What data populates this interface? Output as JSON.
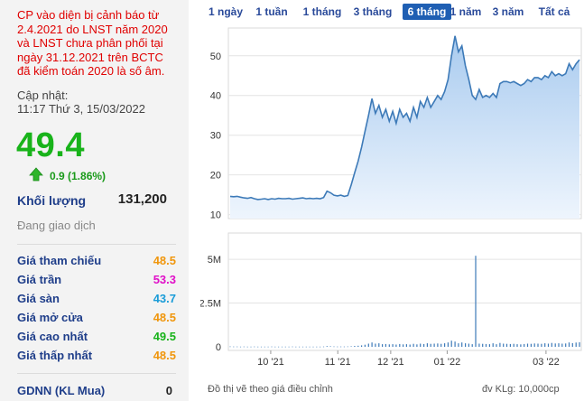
{
  "warning_lines": [
    "CP vào diện bị cảnh báo từ",
    "2.4.2021 do LNST năm 2020",
    "và LNST chưa phân phối tại",
    "ngày 31.12.2021 trên BCTC",
    "đã kiểm toán 2020 là số âm."
  ],
  "updated_label": "Cập nhật:",
  "updated_time": "11:17 Thứ 3, 15/03/2022",
  "price": "49.4",
  "change": "0.9 (1.86%)",
  "volume_label": "Khối lượng",
  "volume_value": "131,200",
  "trading_status": "Đang giao dịch",
  "stats": [
    {
      "label": "Giá tham chiếu",
      "value": "48.5",
      "color": "#f0960c"
    },
    {
      "label": "Giá trần",
      "value": "53.3",
      "color": "#e010c8"
    },
    {
      "label": "Giá sàn",
      "value": "43.7",
      "color": "#1a9cd8"
    },
    {
      "label": "Giá mở cửa",
      "value": "48.5",
      "color": "#f0960c"
    },
    {
      "label": "Giá cao nhất",
      "value": "49.5",
      "color": "#18b31a"
    },
    {
      "label": "Giá thấp nhất",
      "value": "48.5",
      "color": "#f0960c"
    }
  ],
  "gdnn_label": "GDNN (KL Mua)",
  "gdnn_value": "0",
  "tabs": [
    "1 ngày",
    "1 tuần",
    "1 tháng",
    "3 tháng",
    "6 tháng",
    "1 năm",
    "3 năm",
    "Tất cả"
  ],
  "active_tab": "6 tháng",
  "footer_left": "Đồ thị vẽ theo giá điều chỉnh",
  "footer_right": "đv KLg: 10,000cp",
  "colors": {
    "up": "#18b31a",
    "line": "#3d7ab8",
    "area_top": "#a9cbef",
    "area_bottom": "#eef5fd",
    "tab_active": "#1f5fb3"
  },
  "chart_data": [
    {
      "type": "area",
      "title": "",
      "xlabel": "",
      "ylabel": "",
      "x_ticks": [
        "10 '21",
        "11 '21",
        "12 '21",
        "01 '22",
        "03 '22"
      ],
      "y_ticks": [
        10,
        20,
        30,
        40,
        50
      ],
      "ylim": [
        9,
        57
      ],
      "grid": true,
      "series": [
        {
          "values": [
            14.6,
            14.5,
            14.6,
            14.4,
            14.2,
            14.1,
            14.3,
            14.0,
            13.8,
            13.9,
            14.0,
            13.8,
            14.0,
            13.9,
            14.1,
            14.0,
            14.0,
            14.1,
            13.9,
            14.0,
            14.1,
            14.2,
            14.0,
            14.1,
            14.0,
            14.1,
            14.0,
            14.3,
            15.9,
            15.5,
            14.9,
            14.7,
            14.9,
            14.6,
            14.8,
            17.5,
            20.5,
            23.5,
            27.0,
            31.0,
            35.0,
            39.2,
            35.5,
            37.5,
            34.5,
            36.5,
            33.5,
            36.0,
            33.0,
            36.5,
            34.5,
            35.5,
            33.5,
            37.0,
            34.5,
            38.5,
            37.0,
            39.5,
            37.0,
            38.5,
            40.0,
            39.0,
            41.0,
            44.0,
            50.0,
            55.0,
            51.0,
            52.5,
            47.5,
            44.0,
            40.0,
            39.0,
            41.5,
            39.5,
            40.0,
            39.5,
            40.5,
            39.5,
            43.0,
            43.5,
            43.5,
            43.2,
            43.5,
            43.0,
            42.5,
            43.0,
            44.0,
            43.5,
            44.5,
            44.5,
            44.0,
            45.0,
            44.5,
            46.0,
            45.0,
            45.5,
            45.0,
            45.5,
            48.0,
            46.5,
            48.0,
            49.0
          ]
        }
      ]
    },
    {
      "type": "bar",
      "title": "",
      "xlabel": "",
      "ylabel": "",
      "y_ticks": [
        "0",
        "2.5M",
        "5M"
      ],
      "ylim": [
        0,
        6500000
      ],
      "grid": true,
      "series": [
        {
          "values": [
            20000,
            15000,
            18000,
            12000,
            15000,
            10000,
            12000,
            14000,
            10000,
            12000,
            11000,
            10000,
            14000,
            12000,
            10000,
            11000,
            12000,
            10000,
            13000,
            12000,
            11000,
            10000,
            12000,
            11000,
            10000,
            12000,
            11000,
            14000,
            40000,
            30000,
            20000,
            15000,
            18000,
            15000,
            20000,
            30000,
            50000,
            60000,
            80000,
            120000,
            180000,
            250000,
            180000,
            200000,
            150000,
            160000,
            140000,
            150000,
            130000,
            160000,
            140000,
            150000,
            130000,
            170000,
            140000,
            180000,
            160000,
            200000,
            170000,
            180000,
            190000,
            170000,
            200000,
            250000,
            350000,
            300000,
            200000,
            250000,
            200000,
            180000,
            150000,
            5200000,
            180000,
            170000,
            160000,
            150000,
            200000,
            150000,
            220000,
            180000,
            170000,
            160000,
            170000,
            150000,
            140000,
            160000,
            180000,
            170000,
            190000,
            180000,
            170000,
            200000,
            180000,
            220000,
            190000,
            200000,
            180000,
            190000,
            250000,
            210000,
            240000,
            260000
          ]
        }
      ]
    }
  ]
}
